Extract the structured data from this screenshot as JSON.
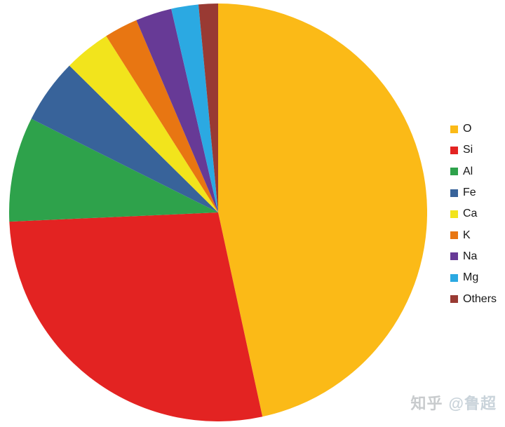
{
  "chart_data": {
    "type": "pie",
    "start_angle_deg": 0,
    "direction": "clockwise",
    "legend_position": "right",
    "background_color": "#ffffff",
    "unit": "percent",
    "series": [
      {
        "label": "O",
        "value": 46.6,
        "color": "#FBBA17"
      },
      {
        "label": "Si",
        "value": 27.7,
        "color": "#E32322"
      },
      {
        "label": "Al",
        "value": 8.1,
        "color": "#2EA24B"
      },
      {
        "label": "Fe",
        "value": 5.0,
        "color": "#38639A"
      },
      {
        "label": "Ca",
        "value": 3.6,
        "color": "#F2E41C"
      },
      {
        "label": "K",
        "value": 2.6,
        "color": "#E87612"
      },
      {
        "label": "Na",
        "value": 2.8,
        "color": "#673A96"
      },
      {
        "label": "Mg",
        "value": 2.1,
        "color": "#2BA9E2"
      },
      {
        "label": "Others",
        "value": 1.5,
        "color": "#993A33"
      }
    ]
  },
  "watermark": {
    "site": "知乎",
    "author": "@鲁超"
  }
}
